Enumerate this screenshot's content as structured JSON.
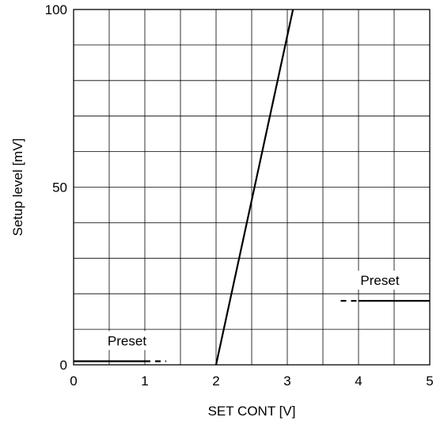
{
  "chart_data": {
    "type": "line",
    "title": "",
    "xlabel": "SET CONT [V]",
    "ylabel": "Setup level [mV]",
    "xlim": [
      0,
      5
    ],
    "ylim": [
      0,
      100
    ],
    "x_ticks": [
      0,
      1,
      2,
      3,
      4,
      5
    ],
    "y_ticks": [
      0,
      50,
      100
    ],
    "grid": true,
    "grid_x_step": 0.5,
    "grid_y_step": 10,
    "series": [
      {
        "style": "solid",
        "points": [
          [
            2.0,
            0
          ],
          [
            3.08,
            100
          ]
        ]
      },
      {
        "style": "solid",
        "points": [
          [
            0,
            1
          ],
          [
            1.0,
            1
          ]
        ]
      },
      {
        "style": "dashed",
        "points": [
          [
            1.0,
            1
          ],
          [
            1.3,
            1
          ]
        ]
      },
      {
        "style": "dashed",
        "points": [
          [
            3.75,
            18
          ],
          [
            4.0,
            18
          ]
        ]
      },
      {
        "style": "solid",
        "points": [
          [
            4.0,
            18
          ],
          [
            5.0,
            18
          ]
        ]
      }
    ],
    "annotations": [
      {
        "text": "Preset",
        "x": 0.75,
        "y": 5.5
      },
      {
        "text": "Preset",
        "x": 4.3,
        "y": 22.5
      }
    ]
  }
}
